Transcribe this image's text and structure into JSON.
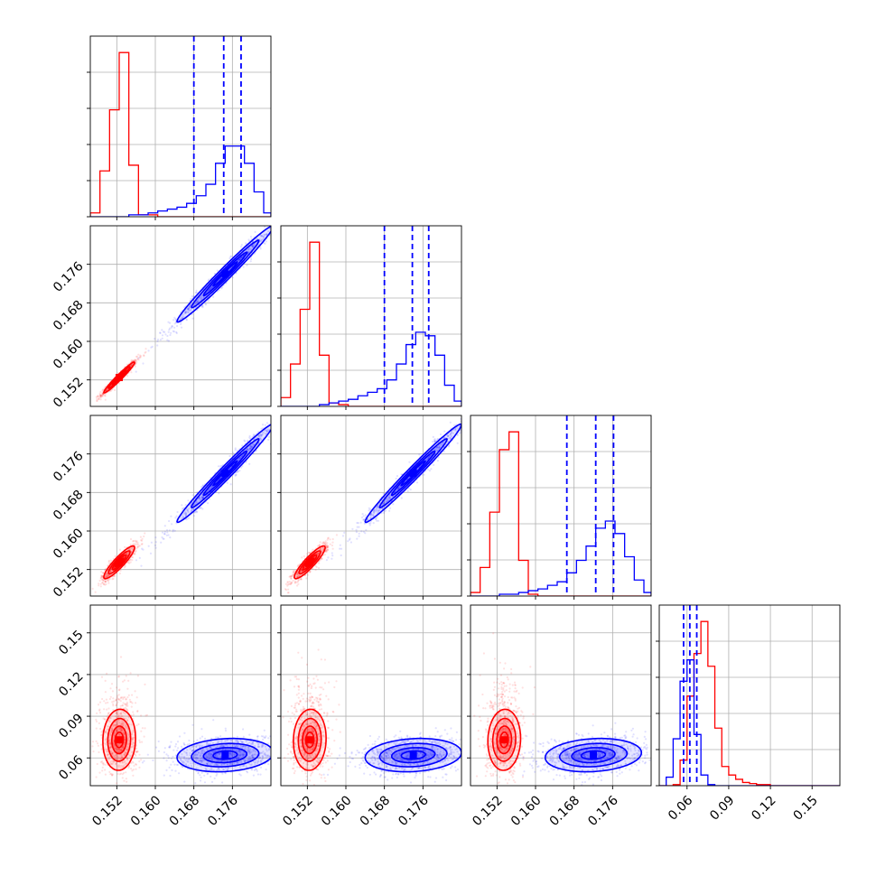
{
  "chart_data": {
    "type": "corner",
    "title": "",
    "variables": 4,
    "colors": {
      "series_a": "#ff0000",
      "series_b": "#0000ff",
      "grid": "#b0b0b0"
    },
    "grid": true,
    "series": [
      {
        "color": "#ff0000",
        "centers": [
          0.1525,
          0.1525,
          0.1535,
          0.073
        ]
      },
      {
        "color": "#0000ff",
        "centers": [
          0.1745,
          0.174,
          0.172,
          0.062
        ]
      }
    ],
    "axes": {
      "a": {
        "range": [
          0.1465,
          0.184
        ],
        "ticks": [
          0.152,
          0.16,
          0.168,
          0.176
        ],
        "tick_labels": [
          "0.152",
          "0.160",
          "0.168",
          "0.176"
        ]
      },
      "d": {
        "range": [
          0.04,
          0.17
        ],
        "ticks": [
          0.06,
          0.09,
          0.12,
          0.15
        ],
        "tick_labels": [
          "0.06",
          "0.09",
          "0.12",
          "0.15"
        ]
      }
    },
    "quantiles_series_b": [
      [
        0.168,
        0.1742,
        0.1778
      ],
      [
        0.168,
        0.1738,
        0.1772
      ],
      [
        0.1665,
        0.1725,
        0.1762
      ],
      [
        0.0575,
        0.062,
        0.067
      ]
    ],
    "histograms": [
      {
        "bin_edges": [
          0.1465,
          0.1485,
          0.1505,
          0.1525,
          0.1545,
          0.1565,
          0.1585,
          0.1605,
          0.1625,
          0.1645,
          0.1665,
          0.1685,
          0.1705,
          0.1725,
          0.1745,
          0.1765,
          0.1785,
          0.1805,
          0.1825,
          0.184
        ],
        "red": [
          0.02,
          0.24,
          0.56,
          0.86,
          0.27,
          0.01,
          0.01,
          0,
          0,
          0,
          0,
          0,
          0,
          0,
          0,
          0,
          0,
          0,
          0
        ],
        "blue": [
          0,
          0,
          0,
          0,
          0.01,
          0.01,
          0.02,
          0.03,
          0.04,
          0.05,
          0.07,
          0.11,
          0.17,
          0.28,
          0.37,
          0.37,
          0.28,
          0.13,
          0.02
        ]
      },
      {
        "bin_edges": [
          0.1465,
          0.1485,
          0.1505,
          0.1525,
          0.1545,
          0.1565,
          0.1585,
          0.1605,
          0.1625,
          0.1645,
          0.1665,
          0.1685,
          0.1705,
          0.1725,
          0.1745,
          0.1765,
          0.1785,
          0.1805,
          0.1825,
          0.184
        ],
        "red": [
          0.05,
          0.24,
          0.55,
          0.93,
          0.29,
          0.02,
          0.01,
          0,
          0,
          0,
          0,
          0,
          0,
          0,
          0,
          0,
          0,
          0,
          0
        ],
        "blue": [
          0,
          0,
          0,
          0,
          0.01,
          0.02,
          0.03,
          0.04,
          0.06,
          0.08,
          0.1,
          0.15,
          0.24,
          0.35,
          0.42,
          0.4,
          0.29,
          0.12,
          0.03
        ]
      },
      {
        "bin_edges": [
          0.1465,
          0.1485,
          0.1505,
          0.1525,
          0.1545,
          0.1565,
          0.1585,
          0.1605,
          0.1625,
          0.1645,
          0.1665,
          0.1685,
          0.1705,
          0.1725,
          0.1745,
          0.1765,
          0.1785,
          0.1805,
          0.1825,
          0.184
        ],
        "red": [
          0.02,
          0.16,
          0.47,
          0.82,
          0.92,
          0.2,
          0.01,
          0,
          0,
          0,
          0,
          0,
          0,
          0,
          0,
          0,
          0,
          0,
          0
        ],
        "blue": [
          0,
          0,
          0,
          0.01,
          0.01,
          0.02,
          0.03,
          0.04,
          0.06,
          0.08,
          0.13,
          0.2,
          0.28,
          0.38,
          0.42,
          0.35,
          0.22,
          0.09,
          0.02
        ]
      },
      {
        "bin_edges": [
          0.04,
          0.045,
          0.05,
          0.055,
          0.06,
          0.065,
          0.07,
          0.075,
          0.08,
          0.085,
          0.09,
          0.095,
          0.1,
          0.105,
          0.11,
          0.115,
          0.12,
          0.125,
          0.13,
          0.14,
          0.15,
          0.16,
          0.17
        ],
        "red": [
          0,
          0,
          0.005,
          0.12,
          0.42,
          0.62,
          0.77,
          0.56,
          0.27,
          0.09,
          0.05,
          0.03,
          0.015,
          0.01,
          0.005,
          0.005,
          0,
          0,
          0,
          0,
          0,
          0
        ],
        "blue": [
          0,
          0.04,
          0.22,
          0.49,
          0.59,
          0.24,
          0.05,
          0.005,
          0,
          0,
          0,
          0,
          0,
          0,
          0,
          0,
          0,
          0,
          0,
          0,
          0,
          0
        ]
      }
    ],
    "pairs": [
      {
        "row": 1,
        "col": 0,
        "red": {
          "center": [
            0.1525,
            0.1525
          ],
          "sx": 0.0016,
          "sy": 0.0016,
          "rho": 0.97
        },
        "blue": {
          "center": [
            0.1745,
            0.174
          ],
          "sx": 0.005,
          "sy": 0.005,
          "rho": 0.985
        }
      },
      {
        "row": 2,
        "col": 0,
        "red": {
          "center": [
            0.1525,
            0.1535
          ],
          "sx": 0.0016,
          "sy": 0.0017,
          "rho": 0.9
        },
        "blue": {
          "center": [
            0.1745,
            0.172
          ],
          "sx": 0.005,
          "sy": 0.0051,
          "rho": 0.985
        }
      },
      {
        "row": 2,
        "col": 1,
        "red": {
          "center": [
            0.1525,
            0.1535
          ],
          "sx": 0.0016,
          "sy": 0.0017,
          "rho": 0.9
        },
        "blue": {
          "center": [
            0.174,
            0.172
          ],
          "sx": 0.005,
          "sy": 0.0051,
          "rho": 0.985
        }
      },
      {
        "row": 3,
        "col": 0,
        "red": {
          "center": [
            0.1525,
            0.073
          ],
          "sx": 0.0017,
          "sy": 0.011,
          "rho": 0.05
        },
        "blue": {
          "center": [
            0.1745,
            0.062
          ],
          "sx": 0.005,
          "sy": 0.006,
          "rho": 0.15
        }
      },
      {
        "row": 3,
        "col": 1,
        "red": {
          "center": [
            0.1525,
            0.073
          ],
          "sx": 0.0017,
          "sy": 0.011,
          "rho": 0.05
        },
        "blue": {
          "center": [
            0.174,
            0.062
          ],
          "sx": 0.005,
          "sy": 0.006,
          "rho": 0.15
        }
      },
      {
        "row": 3,
        "col": 2,
        "red": {
          "center": [
            0.1535,
            0.073
          ],
          "sx": 0.0017,
          "sy": 0.011,
          "rho": 0.05
        },
        "blue": {
          "center": [
            0.172,
            0.062
          ],
          "sx": 0.005,
          "sy": 0.006,
          "rho": 0.15
        }
      }
    ]
  }
}
